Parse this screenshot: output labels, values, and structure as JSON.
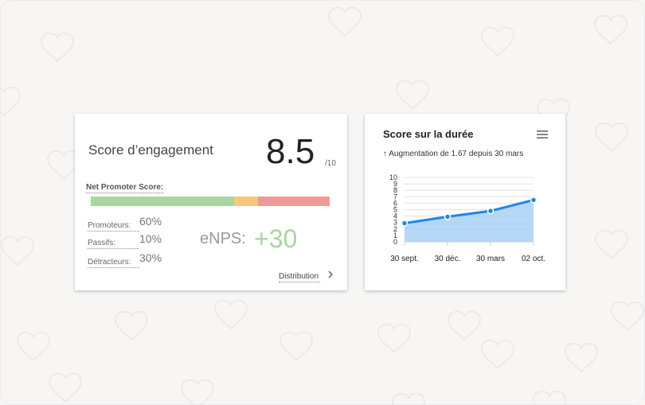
{
  "engagement": {
    "title": "Score d’engagement",
    "score": "8.5",
    "score_max": "/10",
    "nps_label": "Net Promoter Score:",
    "segments": [
      {
        "label": "Promoteurs:",
        "percent": 60,
        "value_text": "60%",
        "color": "#a8d5a0"
      },
      {
        "label": "Passifs:",
        "percent": 10,
        "value_text": "10%",
        "color": "#f5c97a"
      },
      {
        "label": "Détracteurs:",
        "percent": 30,
        "value_text": "30%",
        "color": "#ed9a98"
      }
    ],
    "enps_label": "eNPS:",
    "enps_value": "+30",
    "distribution_link": "Distribution",
    "chevron_icon": "chevron-right-icon"
  },
  "duration": {
    "title": "Score sur la durée",
    "menu_icon": "hamburger-menu-icon",
    "trend_text": "↑ Augmentation de 1.67 depuis 30 mars"
  },
  "chart_data": {
    "type": "area",
    "categories": [
      "30 sept.",
      "30 déc.",
      "30 mars",
      "02 oct."
    ],
    "values": [
      2.9,
      3.9,
      4.8,
      6.5
    ],
    "y_ticks": [
      "0",
      "1",
      "2",
      "3",
      "4",
      "5",
      "6",
      "7",
      "8",
      "9",
      "10"
    ],
    "ylim": [
      0,
      10
    ],
    "grid": true,
    "line_color": "#1e88e5",
    "fill_color": "#9ecbf3"
  },
  "background": {
    "color": "#f8f6f5",
    "pattern_icon": "heart-icon"
  }
}
